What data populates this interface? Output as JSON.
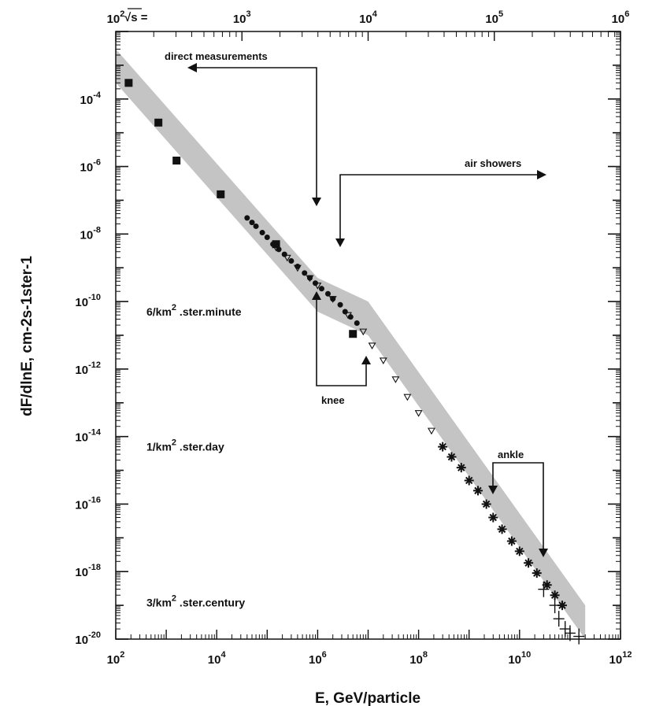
{
  "chart_data": {
    "type": "scatter",
    "xlabel": "E, GeV/particle",
    "ylabel": "dF/dlnE, cm-2s-1ster-1",
    "xscale": "log",
    "yscale": "log",
    "xlim": [
      100,
      1000000000000.0
    ],
    "ylim": [
      1e-20,
      0.01
    ],
    "grid": false,
    "x_tick_labels": [
      {
        "base": "10",
        "exp": "2",
        "value": 100.0
      },
      {
        "base": "10",
        "exp": "4",
        "value": 10000.0
      },
      {
        "base": "10",
        "exp": "6",
        "value": 1000000.0
      },
      {
        "base": "10",
        "exp": "8",
        "value": 100000000.0
      },
      {
        "base": "10",
        "exp": "10",
        "value": 10000000000.0
      },
      {
        "base": "10",
        "exp": "12",
        "value": 1000000000000.0
      }
    ],
    "y_tick_labels": [
      {
        "base": "10",
        "exp": "-4",
        "value": 0.0001
      },
      {
        "base": "10",
        "exp": "-6",
        "value": 1e-06
      },
      {
        "base": "10",
        "exp": "-8",
        "value": 1e-08
      },
      {
        "base": "10",
        "exp": "-10",
        "value": 1e-10
      },
      {
        "base": "10",
        "exp": "-12",
        "value": 1e-12
      },
      {
        "base": "10",
        "exp": "-14",
        "value": 1e-14
      },
      {
        "base": "10",
        "exp": "-16",
        "value": 1e-16
      },
      {
        "base": "10",
        "exp": "-18",
        "value": 1e-18
      },
      {
        "base": "10",
        "exp": "-20",
        "value": 1e-20
      }
    ],
    "top_axis": {
      "label": "√s =",
      "tick_labels": [
        {
          "base": "10",
          "exp": "2",
          "value": 100.0
        },
        {
          "base": "10",
          "exp": "3",
          "value": 1000.0
        },
        {
          "base": "10",
          "exp": "4",
          "value": 10000.0
        },
        {
          "base": "10",
          "exp": "5",
          "value": 100000.0
        },
        {
          "base": "10",
          "exp": "6",
          "value": 1000000.0
        }
      ]
    },
    "band": [
      {
        "x": 100,
        "upper": 0.003,
        "lower": 0.0003
      },
      {
        "x": 1000000.0,
        "upper": 5e-10,
        "lower": 5e-11
      },
      {
        "x": 10000000.0,
        "upper": 1e-10,
        "lower": 1e-11
      },
      {
        "x": 200000000000.0,
        "upper": 1e-19,
        "lower": 1e-20
      }
    ],
    "series": [
      {
        "marker": "square",
        "points": [
          {
            "x": 180,
            "y": 0.0003
          },
          {
            "x": 700,
            "y": 2e-05
          },
          {
            "x": 1600,
            "y": 1.5e-06
          },
          {
            "x": 12000,
            "y": 1.5e-07
          },
          {
            "x": 150000,
            "y": 5e-09
          },
          {
            "x": 5000000,
            "y": 1.1e-11
          }
        ]
      },
      {
        "marker": "circle",
        "points": [
          {
            "x": 40000,
            "y": 3e-08
          },
          {
            "x": 50000,
            "y": 2.2e-08
          },
          {
            "x": 60000,
            "y": 1.7e-08
          },
          {
            "x": 80000,
            "y": 1.1e-08
          },
          {
            "x": 100000,
            "y": 8e-09
          },
          {
            "x": 130000,
            "y": 5e-09
          },
          {
            "x": 170000,
            "y": 3.5e-09
          },
          {
            "x": 220000,
            "y": 2.5e-09
          },
          {
            "x": 300000,
            "y": 1.6e-09
          },
          {
            "x": 400000,
            "y": 1.1e-09
          },
          {
            "x": 550000,
            "y": 7e-10
          },
          {
            "x": 700000,
            "y": 5e-10
          },
          {
            "x": 900000,
            "y": 3.5e-10
          },
          {
            "x": 1200000,
            "y": 2.4e-10
          },
          {
            "x": 1600000,
            "y": 1.7e-10
          },
          {
            "x": 2000000,
            "y": 1.2e-10
          },
          {
            "x": 2800000,
            "y": 8e-11
          },
          {
            "x": 3500000,
            "y": 5e-11
          },
          {
            "x": 4500000,
            "y": 3.5e-11
          },
          {
            "x": 6000000,
            "y": 2.3e-11
          }
        ]
      },
      {
        "marker": "triangle",
        "points": [
          {
            "x": 150000,
            "y": 4e-09
          },
          {
            "x": 250000,
            "y": 2e-09
          },
          {
            "x": 400000,
            "y": 1e-09
          },
          {
            "x": 700000,
            "y": 5e-10
          },
          {
            "x": 1000000,
            "y": 3e-10
          },
          {
            "x": 2000000,
            "y": 1.2e-10
          },
          {
            "x": 4000000,
            "y": 4e-11
          },
          {
            "x": 8000000,
            "y": 1.3e-11
          },
          {
            "x": 12000000,
            "y": 5e-12
          },
          {
            "x": 20000000,
            "y": 1.8e-12
          },
          {
            "x": 35000000,
            "y": 5e-13
          },
          {
            "x": 60000000,
            "y": 1.5e-13
          },
          {
            "x": 100000000,
            "y": 5e-14
          },
          {
            "x": 180000000,
            "y": 1.5e-14
          }
        ]
      },
      {
        "marker": "star",
        "points": [
          {
            "x": 300000000,
            "y": 5e-15
          },
          {
            "x": 450000000,
            "y": 2.5e-15
          },
          {
            "x": 700000000,
            "y": 1.2e-15
          },
          {
            "x": 1000000000,
            "y": 5e-16
          },
          {
            "x": 1500000000,
            "y": 2.5e-16
          },
          {
            "x": 2200000000,
            "y": 1e-16
          },
          {
            "x": 3000000000,
            "y": 4e-17
          },
          {
            "x": 4500000000,
            "y": 1.8e-17
          },
          {
            "x": 7000000000,
            "y": 8e-18
          },
          {
            "x": 10000000000,
            "y": 4e-18
          },
          {
            "x": 15000000000,
            "y": 1.8e-18
          },
          {
            "x": 22000000000,
            "y": 9e-19
          },
          {
            "x": 35000000000,
            "y": 4e-19
          },
          {
            "x": 50000000000,
            "y": 2e-19
          },
          {
            "x": 70000000000,
            "y": 1e-19
          }
        ]
      },
      {
        "marker": "plus",
        "points": [
          {
            "x": 30000000000,
            "y": 3e-19
          },
          {
            "x": 50000000000,
            "y": 1e-19
          },
          {
            "x": 60000000000,
            "y": 4e-20
          },
          {
            "x": 80000000000,
            "y": 2e-20
          },
          {
            "x": 100000000000,
            "y": 1.5e-20
          },
          {
            "x": 150000000000,
            "y": 1.2e-20
          }
        ]
      }
    ],
    "annotations": {
      "direct_measurements": "direct measurements",
      "air_showers": "air showers",
      "knee": "knee",
      "ankle": "ankle"
    },
    "rate_labels": [
      {
        "prefix": "6/km",
        "exp": "2",
        "suffix": " .ster.minute",
        "y": 5e-11
      },
      {
        "prefix": "1/km",
        "exp": "2",
        "suffix": " .ster.day",
        "y": 5e-15
      },
      {
        "prefix": "3/km",
        "exp": "2",
        "suffix": " .ster.century",
        "y": 1.2e-19
      }
    ]
  }
}
